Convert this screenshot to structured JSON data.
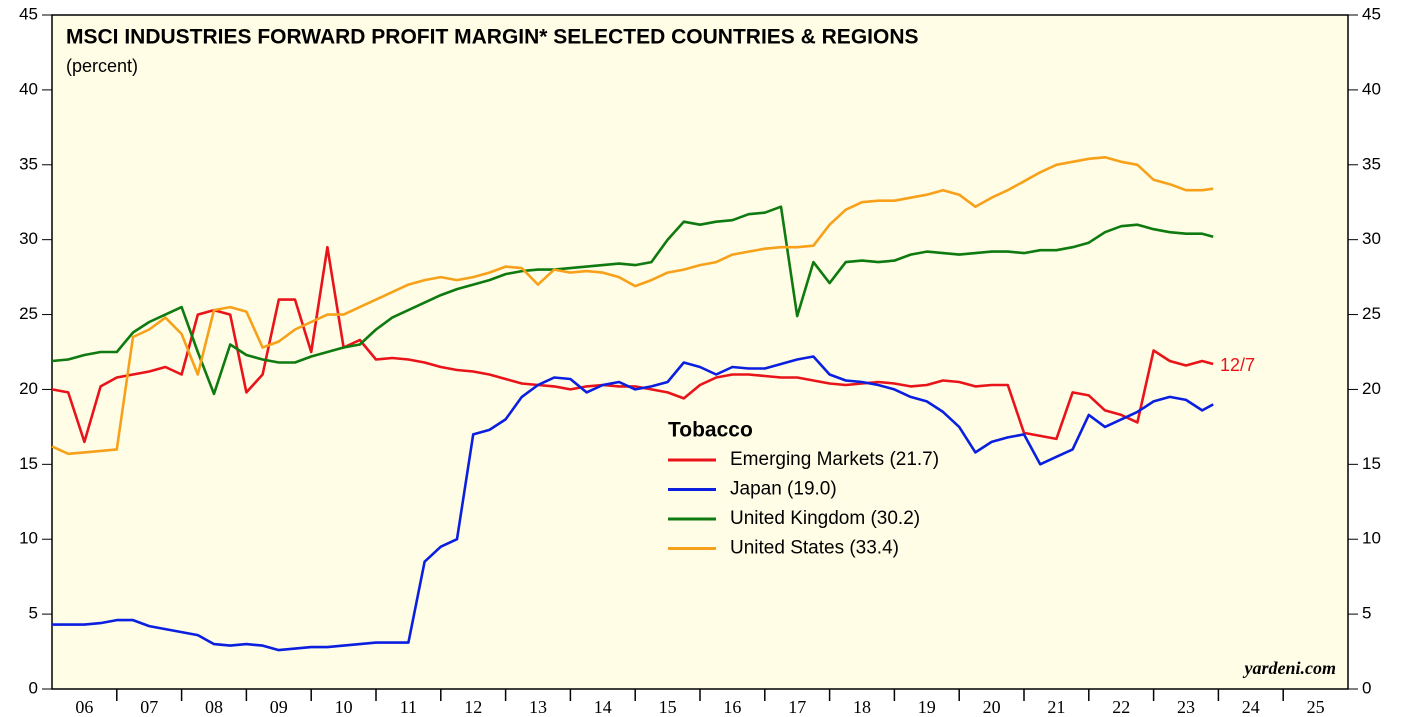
{
  "chart_data": {
    "type": "line",
    "title": "MSCI INDUSTRIES FORWARD PROFIT MARGIN* SELECTED COUNTRIES & REGIONS",
    "subtitle": "(percent)",
    "legend_title": "Tobacco",
    "annotation": "12/7",
    "source": "yardeni.com",
    "x": [
      2006,
      2006.25,
      2006.5,
      2006.75,
      2007,
      2007.25,
      2007.5,
      2007.75,
      2008,
      2008.25,
      2008.5,
      2008.75,
      2009,
      2009.25,
      2009.5,
      2009.75,
      2010,
      2010.25,
      2010.5,
      2010.75,
      2011,
      2011.25,
      2011.5,
      2011.75,
      2012,
      2012.25,
      2012.5,
      2012.75,
      2013,
      2013.25,
      2013.5,
      2013.75,
      2014,
      2014.25,
      2014.5,
      2014.75,
      2015,
      2015.25,
      2015.5,
      2015.75,
      2016,
      2016.25,
      2016.5,
      2016.75,
      2017,
      2017.25,
      2017.5,
      2017.75,
      2018,
      2018.25,
      2018.5,
      2018.75,
      2019,
      2019.25,
      2019.5,
      2019.75,
      2020,
      2020.25,
      2020.5,
      2020.75,
      2021,
      2021.25,
      2021.5,
      2021.75,
      2022,
      2022.25,
      2022.5,
      2022.75,
      2023,
      2023.25,
      2023.5,
      2023.75,
      2023.92
    ],
    "series": [
      {
        "name": "Emerging Markets (21.7)",
        "color": "#e8141a",
        "values": [
          20.0,
          19.8,
          16.5,
          20.2,
          20.8,
          21.0,
          21.2,
          21.5,
          21.0,
          25.0,
          25.3,
          25.0,
          19.8,
          21.0,
          26.0,
          26.0,
          22.5,
          29.5,
          22.8,
          23.3,
          22.0,
          22.1,
          22.0,
          21.8,
          21.5,
          21.3,
          21.2,
          21.0,
          20.7,
          20.4,
          20.3,
          20.2,
          20.0,
          20.2,
          20.3,
          20.2,
          20.2,
          20.0,
          19.8,
          19.4,
          20.3,
          20.8,
          21.0,
          21.0,
          20.9,
          20.8,
          20.8,
          20.6,
          20.4,
          20.3,
          20.4,
          20.5,
          20.4,
          20.2,
          20.3,
          20.6,
          20.5,
          20.2,
          20.3,
          20.3,
          17.1,
          16.9,
          16.7,
          19.8,
          19.6,
          18.6,
          18.3,
          17.8,
          22.6,
          21.9,
          21.6,
          21.9,
          21.7
        ]
      },
      {
        "name": "Japan (19.0)",
        "color": "#0a1fe0",
        "values": [
          4.3,
          4.3,
          4.3,
          4.4,
          4.6,
          4.6,
          4.2,
          4.0,
          3.8,
          3.6,
          3.0,
          2.9,
          3.0,
          2.9,
          2.6,
          2.7,
          2.8,
          2.8,
          2.9,
          3.0,
          3.1,
          3.1,
          3.1,
          8.5,
          9.5,
          10.0,
          17.0,
          17.3,
          18.0,
          19.5,
          20.3,
          20.8,
          20.7,
          19.8,
          20.3,
          20.5,
          20.0,
          20.2,
          20.5,
          21.8,
          21.5,
          21.0,
          21.5,
          21.4,
          21.4,
          21.7,
          22.0,
          22.2,
          21.0,
          20.6,
          20.5,
          20.3,
          20.0,
          19.5,
          19.2,
          18.5,
          17.5,
          15.8,
          16.5,
          16.8,
          17.0,
          15.0,
          15.5,
          16.0,
          18.3,
          17.5,
          18.0,
          18.5,
          19.2,
          19.5,
          19.3,
          18.6,
          19.0
        ]
      },
      {
        "name": "United Kingdom (30.2)",
        "color": "#0f7a0f",
        "values": [
          21.9,
          22.0,
          22.3,
          22.5,
          22.5,
          23.8,
          24.5,
          25.0,
          25.5,
          22.5,
          19.7,
          23.0,
          22.3,
          22.0,
          21.8,
          21.8,
          22.2,
          22.5,
          22.8,
          23.0,
          24.0,
          24.8,
          25.3,
          25.8,
          26.3,
          26.7,
          27.0,
          27.3,
          27.7,
          27.9,
          28.0,
          28.0,
          28.1,
          28.2,
          28.3,
          28.4,
          28.3,
          28.5,
          30.0,
          31.2,
          31.0,
          31.2,
          31.3,
          31.7,
          31.8,
          32.2,
          24.9,
          28.5,
          27.1,
          28.5,
          28.6,
          28.5,
          28.6,
          29.0,
          29.2,
          29.1,
          29.0,
          29.1,
          29.2,
          29.2,
          29.1,
          29.3,
          29.3,
          29.5,
          29.8,
          30.5,
          30.9,
          31.0,
          30.7,
          30.5,
          30.4,
          30.4,
          30.2
        ]
      },
      {
        "name": "United States (33.4)",
        "color": "#f7a11a",
        "values": [
          16.2,
          15.7,
          15.8,
          15.9,
          16.0,
          23.5,
          24.0,
          24.8,
          23.7,
          21.0,
          25.3,
          25.5,
          25.2,
          22.8,
          23.2,
          24.0,
          24.5,
          25.0,
          25.0,
          25.5,
          26.0,
          26.5,
          27.0,
          27.3,
          27.5,
          27.3,
          27.5,
          27.8,
          28.2,
          28.1,
          27.0,
          28.0,
          27.8,
          27.9,
          27.8,
          27.5,
          26.9,
          27.3,
          27.8,
          28.0,
          28.3,
          28.5,
          29.0,
          29.2,
          29.4,
          29.5,
          29.5,
          29.6,
          31.0,
          32.0,
          32.5,
          32.6,
          32.6,
          32.8,
          33.0,
          33.3,
          33.0,
          32.2,
          32.8,
          33.3,
          33.9,
          34.5,
          35.0,
          35.2,
          35.4,
          35.5,
          35.2,
          35.0,
          34.0,
          33.7,
          33.3,
          33.3,
          33.4
        ]
      }
    ],
    "xlim": [
      2006,
      2026
    ],
    "xticks": [
      {
        "value": 2006,
        "label": "06"
      },
      {
        "value": 2007,
        "label": "07"
      },
      {
        "value": 2008,
        "label": "08"
      },
      {
        "value": 2009,
        "label": "09"
      },
      {
        "value": 2010,
        "label": "10"
      },
      {
        "value": 2011,
        "label": "11"
      },
      {
        "value": 2012,
        "label": "12"
      },
      {
        "value": 2013,
        "label": "13"
      },
      {
        "value": 2014,
        "label": "14"
      },
      {
        "value": 2015,
        "label": "15"
      },
      {
        "value": 2016,
        "label": "16"
      },
      {
        "value": 2017,
        "label": "17"
      },
      {
        "value": 2018,
        "label": "18"
      },
      {
        "value": 2019,
        "label": "19"
      },
      {
        "value": 2020,
        "label": "20"
      },
      {
        "value": 2021,
        "label": "21"
      },
      {
        "value": 2022,
        "label": "22"
      },
      {
        "value": 2023,
        "label": "23"
      },
      {
        "value": 2024,
        "label": "24"
      },
      {
        "value": 2025,
        "label": "25"
      }
    ],
    "ylim": [
      0,
      45
    ],
    "yticks": [
      0,
      5,
      10,
      15,
      20,
      25,
      30,
      35,
      40,
      45
    ],
    "grid": false,
    "background": "#fffde6"
  }
}
